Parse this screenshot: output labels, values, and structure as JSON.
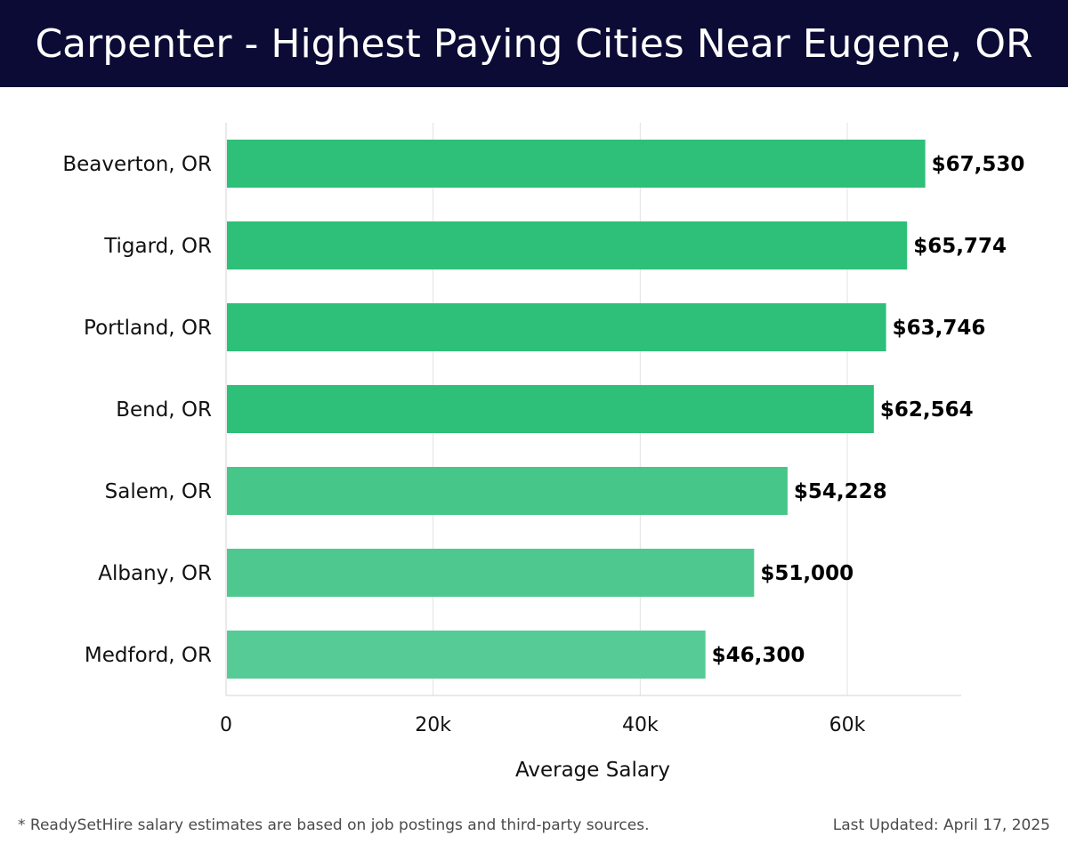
{
  "header": {
    "title": "Carpenter - Highest Paying Cities Near Eugene, OR"
  },
  "chart_data": {
    "type": "bar",
    "orientation": "horizontal",
    "title": "Carpenter - Highest Paying Cities Near Eugene, OR",
    "categories": [
      "Beaverton, OR",
      "Tigard, OR",
      "Portland, OR",
      "Bend, OR",
      "Salem, OR",
      "Albany, OR",
      "Medford, OR"
    ],
    "values": [
      67530,
      65774,
      63746,
      62564,
      54228,
      51000,
      46300
    ],
    "value_labels": [
      "$67,530",
      "$65,774",
      "$63,746",
      "$62,564",
      "$54,228",
      "$51,000",
      "$46,300"
    ],
    "bar_colors": [
      "#2ebf78",
      "#2ebf78",
      "#2ebf78",
      "#2ebf78",
      "#47c68a",
      "#4fc88f",
      "#57cb95"
    ],
    "xlabel": "Average Salary",
    "ylabel": "",
    "xlim": [
      0,
      71000
    ],
    "xticks": [
      0,
      20000,
      40000,
      60000
    ],
    "xtick_labels": [
      "0",
      "20k",
      "40k",
      "60k"
    ],
    "grid": "vertical",
    "legend": "none"
  },
  "footer": {
    "note": "* ReadySetHire salary estimates are based on job postings and third-party sources.",
    "updated": "Last Updated: April 17, 2025"
  },
  "colors": {
    "header_bg": "#0b0b35",
    "grid": "#e2e2e2",
    "text": "#111111"
  }
}
